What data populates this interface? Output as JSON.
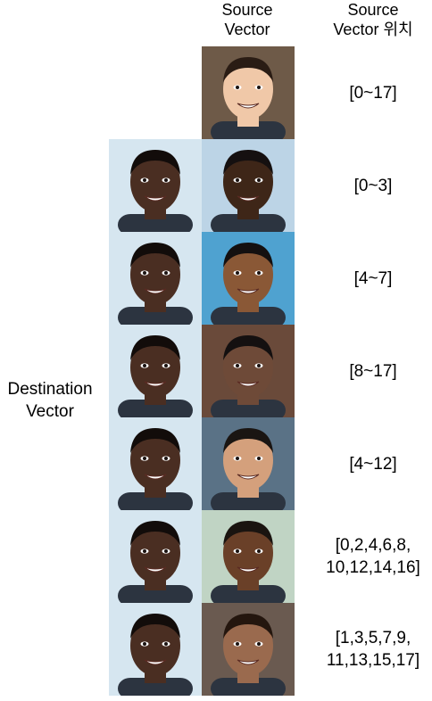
{
  "header": {
    "source_line1": "Source",
    "source_line2": "Vector",
    "position_line1": "Source",
    "position_line2": "Vector 위치"
  },
  "left_label": {
    "line1": "Destination",
    "line2": "Vector"
  },
  "rows": [
    {
      "position": [
        "[0~17]"
      ]
    },
    {
      "position": [
        "[0~3]"
      ]
    },
    {
      "position": [
        "[4~7]"
      ]
    },
    {
      "position": [
        "[8~17]"
      ]
    },
    {
      "position": [
        "[4~12]"
      ]
    },
    {
      "position": [
        "[0,2,4,6,8,",
        "10,12,14,16]"
      ]
    },
    {
      "position": [
        "[1,3,5,7,9,",
        "11,13,15,17]"
      ]
    }
  ],
  "colors": {
    "destination_skin": "#4a2e22",
    "destination_bg": "#d6e6f0",
    "source_skins": [
      "#f0c8a8",
      "#3e2618",
      "#8a5836",
      "#6e4a38",
      "#d4a07c",
      "#6a4028",
      "#9a6a4e"
    ],
    "source_bgs": [
      "#6e5a48",
      "#bcd4e6",
      "#4fa2d0",
      "#6a4a3a",
      "#5a7286",
      "#c0d4c4",
      "#6a5a50"
    ],
    "source_hair": [
      "#2a1c14",
      "#151010",
      "#141010",
      "#141010",
      "#1a1512",
      "#1a1410",
      "#24160e"
    ]
  }
}
